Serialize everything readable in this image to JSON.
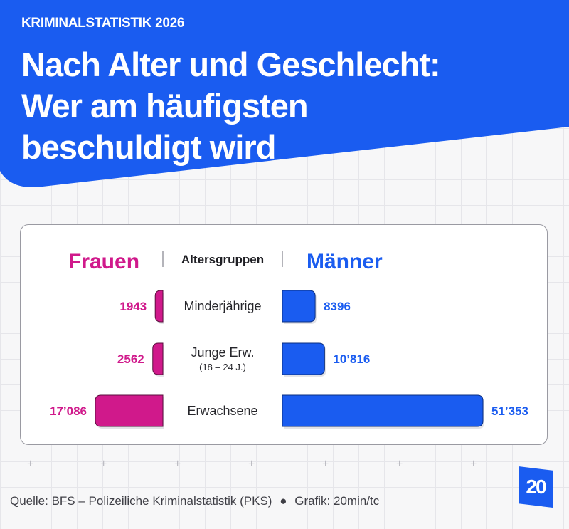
{
  "header": {
    "overline": "KRIMINALSTATISTIK 2026",
    "headline_lines": [
      "Nach Alter und Geschlecht:",
      "Wer am häufigsten",
      "beschuldigt wird"
    ]
  },
  "colors": {
    "brand_blue": "#1a5cf0",
    "women": "#d0198b",
    "men": "#1a5cf0"
  },
  "chart_data": {
    "type": "bar",
    "layout": "butterfly",
    "header_left": "Frauen",
    "header_center": "Altersgruppen",
    "header_right": "Männer",
    "categories": [
      {
        "label": "Minderjährige",
        "sublabel": ""
      },
      {
        "label": "Junge Erw.",
        "sublabel": "(18 – 24 J.)"
      },
      {
        "label": "Erwachsene",
        "sublabel": ""
      }
    ],
    "series": [
      {
        "name": "Frauen",
        "values": [
          1943,
          2562,
          17086
        ],
        "labels": [
          "1943",
          "2562",
          "17’086"
        ]
      },
      {
        "name": "Männer",
        "values": [
          8396,
          10816,
          51353
        ],
        "labels": [
          "8396",
          "10’816",
          "51’353"
        ]
      }
    ]
  },
  "footer": {
    "source": "Quelle: BFS – Polizeiliche Kriminalstatistik (PKS)",
    "separator": "●",
    "credit": "Grafik: 20min/tc",
    "logo_text": "20"
  }
}
